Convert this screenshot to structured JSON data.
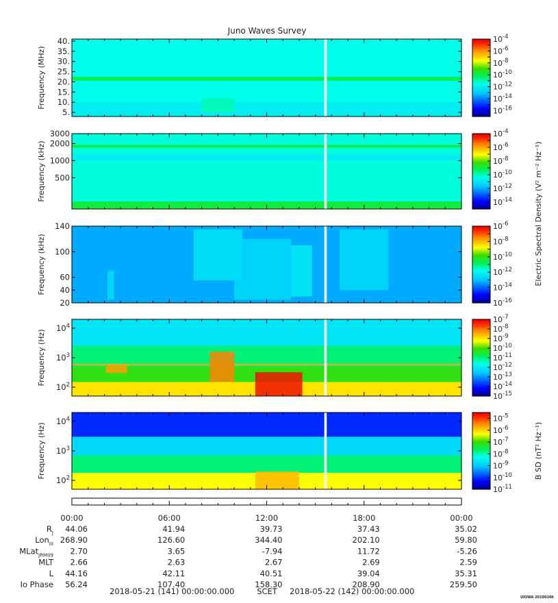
{
  "chart_data": {
    "type": "heatmap",
    "title": "Juno Waves Survey",
    "x_ticks": [
      "00:00",
      "06:00",
      "12:00",
      "18:00",
      "00:00"
    ],
    "x_range_hours": [
      0,
      24
    ],
    "data_gap_hours": [
      15.55,
      15.7
    ],
    "grid": false,
    "colormap": "rainbow",
    "panels": [
      {
        "name": "hfr-high",
        "ylabel": "Frequency (MHz)",
        "ylim": [
          3,
          41
        ],
        "yscale": "linear",
        "yticks": [
          {
            "v": 40,
            "l": "40."
          },
          {
            "v": 35,
            "l": "35."
          },
          {
            "v": 30,
            "l": "30."
          },
          {
            "v": 25,
            "l": "25."
          },
          {
            "v": 20,
            "l": "20."
          },
          {
            "v": 15,
            "l": "15."
          },
          {
            "v": 10,
            "l": "10."
          },
          {
            "v": 5,
            "l": "5."
          }
        ],
        "colorbar": {
          "exp_min": -17,
          "exp_max": -4,
          "labels": [
            "-4",
            "-6",
            "-8",
            "-10",
            "-12",
            "-14",
            "-16"
          ],
          "title": ""
        },
        "background_level": 0.42,
        "features": [
          {
            "type": "band",
            "y0": 20.5,
            "y1": 22.5,
            "level": 0.52
          },
          {
            "type": "band",
            "y0": 3,
            "y1": 10,
            "level": 0.38
          },
          {
            "type": "patch",
            "x0": 8,
            "x1": 10,
            "y0": 5,
            "y1": 12,
            "level": 0.46
          }
        ]
      },
      {
        "name": "hfr-low",
        "ylabel": "Frequency (kHz)",
        "ylim": [
          140,
          3000
        ],
        "yscale": "log",
        "yticks": [
          {
            "v": 3000,
            "l": "3000"
          },
          {
            "v": 2000,
            "l": "2000"
          },
          {
            "v": 1000,
            "l": "1000"
          },
          {
            "v": 500,
            "l": "500"
          }
        ],
        "colorbar": {
          "exp_min": -15,
          "exp_max": -4,
          "labels": [
            "-4",
            "-6",
            "-8",
            "-10",
            "-12",
            "-14"
          ],
          "title": ""
        },
        "background_level": 0.43,
        "features": [
          {
            "type": "band",
            "y0": 1700,
            "y1": 1900,
            "level": 0.54
          },
          {
            "type": "band",
            "y0": 1000,
            "y1": 1300,
            "level": 0.38
          },
          {
            "type": "band",
            "y0": 140,
            "y1": 190,
            "level": 0.55
          }
        ]
      },
      {
        "name": "lfr-high",
        "ylabel": "Frequency (kHz)",
        "ylim": [
          20,
          140
        ],
        "yscale": "linear",
        "yticks": [
          {
            "v": 140,
            "l": "140"
          },
          {
            "v": 100,
            "l": "100"
          },
          {
            "v": 60,
            "l": "60"
          },
          {
            "v": 40,
            "l": "40"
          },
          {
            "v": 20,
            "l": "20"
          }
        ],
        "colorbar": {
          "exp_min": -16,
          "exp_max": -6,
          "labels": [
            "-6",
            "-8",
            "-10",
            "-12",
            "-14",
            "-16"
          ],
          "title": "Electric Spectral Density (V² m⁻² Hz⁻¹)"
        },
        "background_level": 0.27,
        "features": [
          {
            "type": "patch",
            "x0": 7.5,
            "x1": 10.5,
            "y0": 55,
            "y1": 135,
            "level": 0.36
          },
          {
            "type": "patch",
            "x0": 10,
            "x1": 13.5,
            "y0": 25,
            "y1": 120,
            "level": 0.34
          },
          {
            "type": "patch",
            "x0": 13.5,
            "x1": 14.8,
            "y0": 30,
            "y1": 110,
            "level": 0.38
          },
          {
            "type": "patch",
            "x0": 16.5,
            "x1": 19.5,
            "y0": 40,
            "y1": 135,
            "level": 0.34
          },
          {
            "type": "patch",
            "x0": 2.2,
            "x1": 2.6,
            "y0": 25,
            "y1": 70,
            "level": 0.35
          }
        ]
      },
      {
        "name": "lfr-low",
        "ylabel": "Frequency (Hz)",
        "ylim": [
          50,
          20000
        ],
        "yscale": "log",
        "yticks": [
          {
            "v": 10000,
            "l": "10",
            "sup": "4"
          },
          {
            "v": 1000,
            "l": "10",
            "sup": "3"
          },
          {
            "v": 100,
            "l": "10",
            "sup": "2"
          }
        ],
        "colorbar": {
          "exp_min": -15,
          "exp_max": -7,
          "labels": [
            "-7",
            "-8",
            "-9",
            "-10",
            "-11",
            "-12",
            "-13",
            "-14",
            "-15"
          ],
          "title": ""
        },
        "background_level": 0.5,
        "features": [
          {
            "type": "band",
            "y0": 50,
            "y1": 150,
            "level": 0.75
          },
          {
            "type": "band",
            "y0": 150,
            "y1": 500,
            "level": 0.6
          },
          {
            "type": "band",
            "y0": 2500,
            "y1": 20000,
            "level": 0.36
          },
          {
            "type": "band",
            "y0": 550,
            "y1": 620,
            "level": 0.82
          },
          {
            "type": "patch",
            "x0": 8.5,
            "x1": 10,
            "y0": 150,
            "y1": 1600,
            "level": 0.86
          },
          {
            "type": "patch",
            "x0": 11.3,
            "x1": 14.2,
            "y0": 50,
            "y1": 320,
            "level": 0.97
          },
          {
            "type": "patch",
            "x0": 2.1,
            "x1": 3.4,
            "y0": 300,
            "y1": 550,
            "level": 0.83
          }
        ]
      },
      {
        "name": "magnetic",
        "ylabel": "Frequency (Hz)",
        "ylim": [
          50,
          20000
        ],
        "yscale": "log",
        "yticks": [
          {
            "v": 10000,
            "l": "10",
            "sup": "4"
          },
          {
            "v": 1000,
            "l": "10",
            "sup": "3"
          },
          {
            "v": 100,
            "l": "10",
            "sup": "2"
          }
        ],
        "colorbar": {
          "exp_min": -11,
          "exp_max": -4.5,
          "labels": [
            "-5",
            "-6",
            "-7",
            "-8",
            "-9",
            "-10",
            "-11"
          ],
          "title": "B SD (nT² Hz⁻¹)"
        },
        "background_level": 0.42,
        "features": [
          {
            "type": "band",
            "y0": 3000,
            "y1": 20000,
            "level": 0.14
          },
          {
            "type": "band",
            "y0": 700,
            "y1": 3000,
            "level": 0.34
          },
          {
            "type": "band",
            "y0": 180,
            "y1": 700,
            "level": 0.5
          },
          {
            "type": "band",
            "y0": 50,
            "y1": 180,
            "level": 0.72
          },
          {
            "type": "patch",
            "x0": 11.3,
            "x1": 14,
            "y0": 50,
            "y1": 200,
            "level": 0.8
          }
        ]
      }
    ],
    "ephemeris": [
      {
        "label": "R",
        "sub": "J",
        "values": [
          "44.06",
          "41.94",
          "39.73",
          "37.43",
          "35.02"
        ]
      },
      {
        "label": "Lon",
        "sub": "III",
        "values": [
          "268.90",
          "126.60",
          "344.40",
          "202.10",
          "59.80"
        ]
      },
      {
        "label": "MLat",
        "sub": "JRM09",
        "values": [
          "2.70",
          "3.65",
          "-7.94",
          "11.72",
          "-5.26"
        ]
      },
      {
        "label": "MLT",
        "sub": "",
        "values": [
          "2.66",
          "2.63",
          "2.67",
          "2.69",
          "2.59"
        ]
      },
      {
        "label": "L",
        "sub": "",
        "values": [
          "44.16",
          "42.11",
          "40.51",
          "39.04",
          "35.31"
        ]
      },
      {
        "label": "Io Phase",
        "sub": "",
        "values": [
          "56.24",
          "107.40",
          "158.30",
          "208.90",
          "259.50"
        ]
      }
    ],
    "footer": {
      "start": "2018-05-21 (141) 00:00:00.000",
      "scet": "SCET",
      "end": "2018-05-22 (142) 00:00:00.000"
    },
    "stamp": "UIOWA 20200306"
  }
}
